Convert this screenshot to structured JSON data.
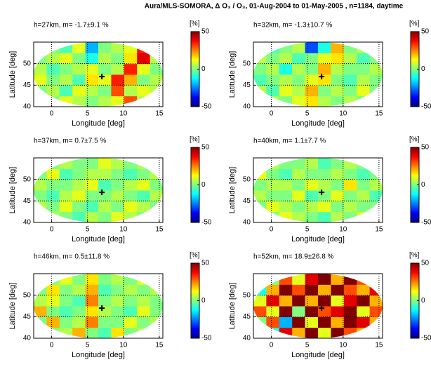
{
  "title": "Aura/MLS-SOMORA, Δ O₃ / O₃, 01-Aug-2004 to 01-May-2005 , n=1184, daytime",
  "chart_data": [
    {
      "type": "heatmap",
      "title": "h=27km, m= -1.7±9.1 %",
      "xlabel": "Longitude [deg]",
      "ylabel": "Latitude [deg]",
      "xlim": [
        -2.5,
        15.5
      ],
      "ylim": [
        40,
        55
      ],
      "xticks": [
        0,
        5,
        10,
        15
      ],
      "yticks": [
        40,
        45,
        50
      ],
      "grid": true,
      "marker": [
        7,
        47
      ],
      "x": [
        -1.6,
        0.2,
        2.0,
        3.8,
        5.6,
        7.4,
        9.2,
        11.0,
        12.8,
        14.6
      ],
      "y": [
        41.25,
        43.75,
        46.25,
        48.75,
        51.25,
        53.75
      ],
      "colorbar": {
        "label": "[%]",
        "lim": [
          -50,
          50
        ],
        "ticks": [
          50,
          0,
          -50
        ]
      },
      "values": [
        [
          5,
          0,
          10,
          5,
          0,
          5,
          10,
          30,
          5,
          0
        ],
        [
          0,
          5,
          -5,
          10,
          5,
          0,
          30,
          5,
          10,
          5
        ],
        [
          10,
          0,
          5,
          -5,
          15,
          10,
          35,
          20,
          0,
          5
        ],
        [
          5,
          -5,
          0,
          5,
          10,
          0,
          5,
          35,
          10,
          0
        ],
        [
          0,
          5,
          10,
          0,
          -10,
          5,
          0,
          15,
          40,
          5
        ],
        [
          5,
          0,
          -5,
          10,
          -20,
          0,
          5,
          10,
          35,
          0
        ]
      ]
    },
    {
      "type": "heatmap",
      "title": "h=32km, m= -1.3±10.7 %",
      "xlabel": "Longitude [deg]",
      "ylabel": "Latitude [deg]",
      "xlim": [
        -2.5,
        15.5
      ],
      "ylim": [
        40,
        55
      ],
      "xticks": [
        0,
        5,
        10,
        15
      ],
      "yticks": [
        40,
        45,
        50
      ],
      "grid": true,
      "marker": [
        7,
        47
      ],
      "x": [
        -1.6,
        0.2,
        2.0,
        3.8,
        5.6,
        7.4,
        9.2,
        11.0,
        12.8,
        14.6
      ],
      "y": [
        41.25,
        43.75,
        46.25,
        48.75,
        51.25,
        53.75
      ],
      "colorbar": {
        "label": "[%]",
        "lim": [
          -50,
          50
        ],
        "ticks": [
          50,
          0,
          -50
        ]
      },
      "values": [
        [
          0,
          5,
          0,
          10,
          15,
          5,
          0,
          5,
          0,
          5
        ],
        [
          5,
          -5,
          10,
          5,
          20,
          0,
          5,
          0,
          10,
          0
        ],
        [
          -5,
          0,
          5,
          0,
          10,
          15,
          0,
          -5,
          5,
          0
        ],
        [
          0,
          5,
          -10,
          5,
          0,
          20,
          5,
          0,
          0,
          5
        ],
        [
          5,
          0,
          5,
          -5,
          0,
          10,
          15,
          5,
          -5,
          0
        ],
        [
          0,
          -5,
          0,
          5,
          -30,
          -10,
          20,
          0,
          5,
          0
        ]
      ]
    },
    {
      "type": "heatmap",
      "title": "h=37km, m= 0.7±7.5 %",
      "xlabel": "Longitude [deg]",
      "ylabel": "Latitude [deg]",
      "xlim": [
        -2.5,
        15.5
      ],
      "ylim": [
        40,
        55
      ],
      "xticks": [
        0,
        5,
        10,
        15
      ],
      "yticks": [
        40,
        45,
        50
      ],
      "grid": true,
      "marker": [
        7,
        47
      ],
      "x": [
        -1.6,
        0.2,
        2.0,
        3.8,
        5.6,
        7.4,
        9.2,
        11.0,
        12.8,
        14.6
      ],
      "y": [
        41.25,
        43.75,
        46.25,
        48.75,
        51.25,
        53.75
      ],
      "colorbar": {
        "label": "[%]",
        "lim": [
          -50,
          50
        ],
        "ticks": [
          50,
          0,
          -50
        ]
      },
      "values": [
        [
          0,
          5,
          0,
          -5,
          5,
          0,
          10,
          5,
          0,
          5
        ],
        [
          5,
          0,
          10,
          0,
          -5,
          5,
          0,
          10,
          5,
          0
        ],
        [
          0,
          -5,
          5,
          10,
          0,
          0,
          5,
          0,
          -5,
          5
        ],
        [
          5,
          0,
          0,
          5,
          10,
          -5,
          0,
          5,
          10,
          0
        ],
        [
          0,
          10,
          -5,
          0,
          5,
          5,
          0,
          -5,
          0,
          5
        ],
        [
          5,
          0,
          5,
          0,
          0,
          10,
          5,
          0,
          5,
          0
        ]
      ]
    },
    {
      "type": "heatmap",
      "title": "h=40km, m= 1.1±7.7 %",
      "xlabel": "Longitude [deg]",
      "ylabel": "Latitude [deg]",
      "xlim": [
        -2.5,
        15.5
      ],
      "ylim": [
        40,
        55
      ],
      "xticks": [
        0,
        5,
        10,
        15
      ],
      "yticks": [
        40,
        45,
        50
      ],
      "grid": true,
      "marker": [
        7,
        47
      ],
      "x": [
        -1.6,
        0.2,
        2.0,
        3.8,
        5.6,
        7.4,
        9.2,
        11.0,
        12.8,
        14.6
      ],
      "y": [
        41.25,
        43.75,
        46.25,
        48.75,
        51.25,
        53.75
      ],
      "colorbar": {
        "label": "[%]",
        "lim": [
          -50,
          50
        ],
        "ticks": [
          50,
          0,
          -50
        ]
      },
      "values": [
        [
          5,
          0,
          10,
          5,
          0,
          -5,
          5,
          0,
          10,
          5
        ],
        [
          0,
          10,
          5,
          0,
          5,
          10,
          0,
          5,
          0,
          0
        ],
        [
          5,
          0,
          0,
          10,
          -5,
          0,
          10,
          0,
          5,
          -5
        ],
        [
          0,
          5,
          5,
          0,
          10,
          5,
          0,
          15,
          0,
          5
        ],
        [
          10,
          0,
          -5,
          5,
          0,
          0,
          5,
          0,
          -5,
          0
        ],
        [
          0,
          5,
          0,
          0,
          5,
          -5,
          0,
          5,
          0,
          5
        ]
      ]
    },
    {
      "type": "heatmap",
      "title": "h=46km, m= 0.5±11.8 %",
      "xlabel": "Longitude [deg]",
      "ylabel": "Latitude [deg]",
      "xlim": [
        -2.5,
        15.5
      ],
      "ylim": [
        40,
        55
      ],
      "xticks": [
        0,
        5,
        10,
        15
      ],
      "yticks": [
        40,
        45,
        50
      ],
      "grid": true,
      "marker": [
        7,
        47
      ],
      "x": [
        -1.6,
        0.2,
        2.0,
        3.8,
        5.6,
        7.4,
        9.2,
        11.0,
        12.8,
        14.6
      ],
      "y": [
        41.25,
        43.75,
        46.25,
        48.75,
        51.25,
        53.75
      ],
      "colorbar": {
        "label": "[%]",
        "lim": [
          -50,
          50
        ],
        "ticks": [
          50,
          0,
          -50
        ]
      },
      "values": [
        [
          15,
          0,
          5,
          20,
          0,
          -5,
          15,
          0,
          5,
          10
        ],
        [
          0,
          20,
          0,
          5,
          25,
          0,
          0,
          10,
          0,
          5
        ],
        [
          20,
          0,
          -5,
          0,
          15,
          5,
          0,
          -5,
          10,
          0
        ],
        [
          5,
          10,
          0,
          -5,
          25,
          0,
          5,
          0,
          5,
          0
        ],
        [
          0,
          15,
          0,
          5,
          20,
          -5,
          0,
          5,
          0,
          5
        ],
        [
          5,
          0,
          10,
          0,
          15,
          0,
          5,
          0,
          10,
          0
        ]
      ]
    },
    {
      "type": "heatmap",
      "title": "h=52km, m= 18.9±26.8 %",
      "xlabel": "Longitude [deg]",
      "ylabel": "Latitude [deg]",
      "xlim": [
        -2.5,
        15.5
      ],
      "ylim": [
        40,
        55
      ],
      "xticks": [
        0,
        5,
        10,
        15
      ],
      "yticks": [
        40,
        45,
        50
      ],
      "grid": true,
      "marker": [
        7,
        47
      ],
      "x": [
        -1.6,
        0.2,
        2.0,
        3.8,
        5.6,
        7.4,
        9.2,
        11.0,
        12.8,
        14.6
      ],
      "y": [
        41.25,
        43.75,
        46.25,
        48.75,
        51.25,
        53.75
      ],
      "colorbar": {
        "label": "[%]",
        "lim": [
          -50,
          50
        ],
        "ticks": [
          50,
          0,
          -50
        ]
      },
      "values": [
        [
          20,
          -10,
          40,
          20,
          50,
          10,
          60,
          30,
          20,
          10
        ],
        [
          0,
          30,
          -20,
          50,
          10,
          60,
          20,
          50,
          40,
          20
        ],
        [
          30,
          10,
          50,
          0,
          60,
          30,
          40,
          60,
          10,
          30
        ],
        [
          10,
          40,
          20,
          60,
          20,
          50,
          10,
          40,
          60,
          20
        ],
        [
          -10,
          20,
          60,
          30,
          50,
          20,
          60,
          30,
          20,
          40
        ],
        [
          20,
          0,
          30,
          10,
          40,
          60,
          20,
          50,
          30,
          10
        ]
      ]
    }
  ]
}
